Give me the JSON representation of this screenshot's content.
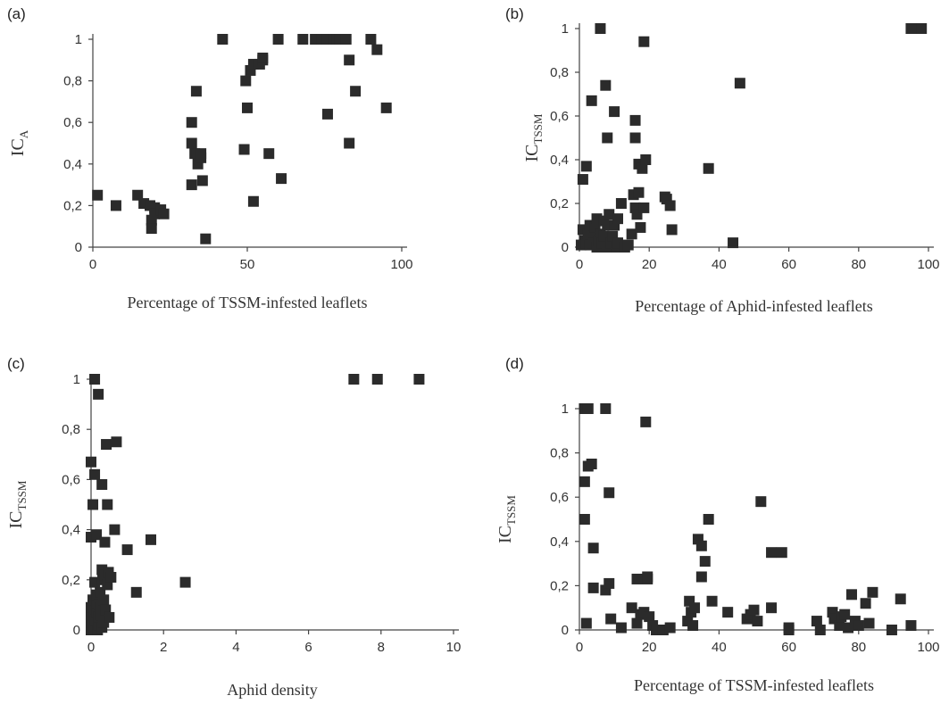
{
  "chart_data": [
    {
      "type": "scatter",
      "panel_label": "(a)",
      "xlabel": "Percentage of TSSM-infested leaflets",
      "ylabel": "IC",
      "ylabel_sub": "A",
      "xlim": [
        0,
        100
      ],
      "ylim": [
        0,
        1
      ],
      "xticks": [
        "0",
        "50",
        "100"
      ],
      "yticks": [
        "0",
        "0,2",
        "0,4",
        "0,6",
        "0,8",
        "1"
      ],
      "grid": false,
      "points": [
        [
          1.5,
          0.25
        ],
        [
          7.5,
          0.2
        ],
        [
          14.5,
          0.25
        ],
        [
          16.5,
          0.21
        ],
        [
          18.5,
          0.2
        ],
        [
          19,
          0.13
        ],
        [
          19,
          0.09
        ],
        [
          20,
          0.19
        ],
        [
          20,
          0.16
        ],
        [
          22,
          0.18
        ],
        [
          23,
          0.16
        ],
        [
          32,
          0.3
        ],
        [
          32,
          0.6
        ],
        [
          32,
          0.5
        ],
        [
          33,
          0.45
        ],
        [
          33.5,
          0.75
        ],
        [
          34,
          0.4
        ],
        [
          35,
          0.43
        ],
        [
          35,
          0.45
        ],
        [
          35.5,
          0.32
        ],
        [
          36.5,
          0.04
        ],
        [
          42,
          1.0
        ],
        [
          49,
          0.47
        ],
        [
          49.5,
          0.8
        ],
        [
          50,
          0.67
        ],
        [
          51,
          0.85
        ],
        [
          52,
          0.88
        ],
        [
          52,
          0.22
        ],
        [
          54,
          0.88
        ],
        [
          55,
          0.9
        ],
        [
          55,
          0.91
        ],
        [
          57,
          0.45
        ],
        [
          60,
          1.0
        ],
        [
          61,
          0.33
        ],
        [
          68,
          1.0
        ],
        [
          72,
          1.0
        ],
        [
          74,
          1.0
        ],
        [
          76,
          1.0
        ],
        [
          76,
          0.64
        ],
        [
          78,
          1.0
        ],
        [
          79,
          1.0
        ],
        [
          80,
          1.0
        ],
        [
          82,
          1.0
        ],
        [
          83,
          0.9
        ],
        [
          83,
          0.5
        ],
        [
          85,
          0.75
        ],
        [
          90,
          1.0
        ],
        [
          92,
          0.95
        ],
        [
          95,
          0.67
        ]
      ]
    },
    {
      "type": "scatter",
      "panel_label": "(b)",
      "xlabel": "Percentage of Aphid-infested leaflets",
      "ylabel": "IC",
      "ylabel_sub": "TSSM",
      "xlim": [
        0,
        100
      ],
      "ylim": [
        0,
        1
      ],
      "xticks": [
        "0",
        "20",
        "40",
        "60",
        "80",
        "100"
      ],
      "yticks": [
        "0",
        "0,2",
        "0,4",
        "0,6",
        "0,8",
        "1"
      ],
      "grid": false,
      "points": [
        [
          0.5,
          0.01
        ],
        [
          1,
          0.08
        ],
        [
          1,
          0.31
        ],
        [
          1.5,
          0.03
        ],
        [
          2,
          0.02
        ],
        [
          2,
          0.37
        ],
        [
          2.5,
          0.06
        ],
        [
          3,
          0.1
        ],
        [
          3,
          0.01
        ],
        [
          3.5,
          0.67
        ],
        [
          4,
          0.05
        ],
        [
          4,
          0.02
        ],
        [
          4.5,
          0.09
        ],
        [
          5,
          0.0
        ],
        [
          5,
          0.13
        ],
        [
          5.5,
          0.03
        ],
        [
          6,
          1.0
        ],
        [
          6,
          0.06
        ],
        [
          6.5,
          0.02
        ],
        [
          7,
          0.12
        ],
        [
          7,
          0.05
        ],
        [
          7.5,
          0.74
        ],
        [
          8,
          0.5
        ],
        [
          8,
          0.1
        ],
        [
          8,
          0.0
        ],
        [
          8.5,
          0.15
        ],
        [
          9,
          0.02
        ],
        [
          9.5,
          0.05
        ],
        [
          10,
          0.62
        ],
        [
          10,
          0.1
        ],
        [
          10.5,
          0.0
        ],
        [
          11,
          0.13
        ],
        [
          11,
          0.02
        ],
        [
          12,
          0.2
        ],
        [
          13,
          0.0
        ],
        [
          14,
          0.01
        ],
        [
          15,
          0.06
        ],
        [
          15.5,
          0.24
        ],
        [
          16,
          0.58
        ],
        [
          16,
          0.5
        ],
        [
          16,
          0.18
        ],
        [
          16.5,
          0.15
        ],
        [
          17,
          0.25
        ],
        [
          17,
          0.38
        ],
        [
          17.5,
          0.09
        ],
        [
          18,
          0.36
        ],
        [
          18.5,
          0.94
        ],
        [
          18.5,
          0.18
        ],
        [
          19,
          0.4
        ],
        [
          24.5,
          0.23
        ],
        [
          25,
          0.22
        ],
        [
          26,
          0.19
        ],
        [
          26.5,
          0.08
        ],
        [
          37,
          0.36
        ],
        [
          44,
          0.02
        ],
        [
          46,
          0.75
        ],
        [
          95,
          1.0
        ],
        [
          96.5,
          1.0
        ],
        [
          98,
          1.0
        ]
      ]
    },
    {
      "type": "scatter",
      "panel_label": "(c)",
      "xlabel": "Aphid density",
      "ylabel": "IC",
      "ylabel_sub": "TSSM",
      "xlim": [
        0,
        10
      ],
      "ylim": [
        0,
        1
      ],
      "xticks": [
        "0",
        "2",
        "4",
        "6",
        "8",
        "10"
      ],
      "yticks": [
        "0",
        "0,2",
        "0,4",
        "0,6",
        "0,8",
        "1"
      ],
      "grid": false,
      "points": [
        [
          0.0,
          0.0
        ],
        [
          0.0,
          0.03
        ],
        [
          0.0,
          0.05
        ],
        [
          0.0,
          0.09
        ],
        [
          0.0,
          0.37
        ],
        [
          0.0,
          0.67
        ],
        [
          0.05,
          0.02
        ],
        [
          0.05,
          0.1
        ],
        [
          0.05,
          0.12
        ],
        [
          0.05,
          0.5
        ],
        [
          0.08,
          0.0
        ],
        [
          0.08,
          0.06
        ],
        [
          0.1,
          0.19
        ],
        [
          0.1,
          0.62
        ],
        [
          0.1,
          1.0
        ],
        [
          0.12,
          0.04
        ],
        [
          0.15,
          0.07
        ],
        [
          0.15,
          0.11
        ],
        [
          0.15,
          0.14
        ],
        [
          0.15,
          0.38
        ],
        [
          0.18,
          0.0
        ],
        [
          0.2,
          0.02
        ],
        [
          0.2,
          0.05
        ],
        [
          0.2,
          0.94
        ],
        [
          0.22,
          0.1
        ],
        [
          0.25,
          0.15
        ],
        [
          0.25,
          0.09
        ],
        [
          0.28,
          0.06
        ],
        [
          0.3,
          0.01
        ],
        [
          0.3,
          0.58
        ],
        [
          0.3,
          0.24
        ],
        [
          0.32,
          0.2
        ],
        [
          0.35,
          0.12
        ],
        [
          0.35,
          0.03
        ],
        [
          0.38,
          0.35
        ],
        [
          0.38,
          0.22
        ],
        [
          0.4,
          0.08
        ],
        [
          0.42,
          0.74
        ],
        [
          0.45,
          0.5
        ],
        [
          0.45,
          0.18
        ],
        [
          0.48,
          0.23
        ],
        [
          0.5,
          0.05
        ],
        [
          0.55,
          0.21
        ],
        [
          0.65,
          0.4
        ],
        [
          0.7,
          0.75
        ],
        [
          1.0,
          0.32
        ],
        [
          1.25,
          0.15
        ],
        [
          1.65,
          0.36
        ],
        [
          2.6,
          0.19
        ],
        [
          7.25,
          1.0
        ],
        [
          7.9,
          1.0
        ],
        [
          9.05,
          1.0
        ]
      ]
    },
    {
      "type": "scatter",
      "panel_label": "(d)",
      "xlabel": "Percentage of TSSM-infested leaflets",
      "ylabel": "IC",
      "ylabel_sub": "TSSM",
      "xlim": [
        0,
        100
      ],
      "ylim": [
        0,
        1
      ],
      "xticks": [
        "0",
        "20",
        "40",
        "60",
        "80",
        "100"
      ],
      "yticks": [
        "0",
        "0,2",
        "0,4",
        "0,6",
        "0,8",
        "1"
      ],
      "grid": false,
      "points": [
        [
          1.5,
          1.0
        ],
        [
          2.5,
          1.0
        ],
        [
          1.5,
          0.67
        ],
        [
          1.5,
          0.5
        ],
        [
          2.5,
          0.74
        ],
        [
          3.5,
          0.75
        ],
        [
          4,
          0.37
        ],
        [
          4,
          0.19
        ],
        [
          2,
          0.03
        ],
        [
          7.5,
          1.0
        ],
        [
          8.5,
          0.62
        ],
        [
          7.5,
          0.18
        ],
        [
          8.5,
          0.21
        ],
        [
          9,
          0.05
        ],
        [
          12,
          0.01
        ],
        [
          15,
          0.1
        ],
        [
          16.5,
          0.23
        ],
        [
          16.5,
          0.03
        ],
        [
          17.5,
          0.07
        ],
        [
          18.5,
          0.08
        ],
        [
          19,
          0.94
        ],
        [
          19.5,
          0.23
        ],
        [
          19.5,
          0.24
        ],
        [
          20,
          0.06
        ],
        [
          21,
          0.02
        ],
        [
          22,
          0.0
        ],
        [
          24,
          0.0
        ],
        [
          26,
          0.01
        ],
        [
          31,
          0.04
        ],
        [
          31.5,
          0.13
        ],
        [
          32,
          0.08
        ],
        [
          32.5,
          0.02
        ],
        [
          33,
          0.1
        ],
        [
          34,
          0.41
        ],
        [
          35,
          0.24
        ],
        [
          35,
          0.38
        ],
        [
          36,
          0.31
        ],
        [
          37,
          0.5
        ],
        [
          38,
          0.13
        ],
        [
          42.5,
          0.08
        ],
        [
          48,
          0.05
        ],
        [
          49,
          0.07
        ],
        [
          50,
          0.09
        ],
        [
          51,
          0.04
        ],
        [
          52,
          0.58
        ],
        [
          55,
          0.35
        ],
        [
          55,
          0.1
        ],
        [
          58,
          0.35
        ],
        [
          60,
          0.0
        ],
        [
          60,
          0.01
        ],
        [
          68,
          0.04
        ],
        [
          69,
          0.0
        ],
        [
          72.5,
          0.08
        ],
        [
          73,
          0.05
        ],
        [
          74.5,
          0.02
        ],
        [
          75,
          0.06
        ],
        [
          76,
          0.07
        ],
        [
          77,
          0.01
        ],
        [
          78,
          0.16
        ],
        [
          79,
          0.04
        ],
        [
          80,
          0.02
        ],
        [
          82,
          0.12
        ],
        [
          83,
          0.03
        ],
        [
          84,
          0.17
        ],
        [
          89.5,
          0.0
        ],
        [
          92,
          0.14
        ],
        [
          95,
          0.02
        ]
      ]
    }
  ]
}
